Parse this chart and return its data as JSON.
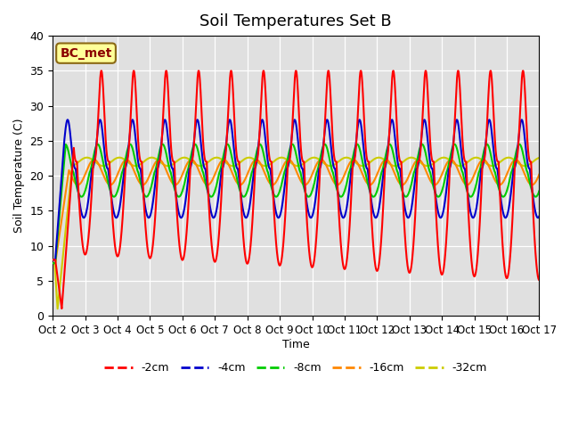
{
  "title": "Soil Temperatures Set B",
  "xlabel": "Time",
  "ylabel": "Soil Temperature (C)",
  "ylim": [
    0,
    40
  ],
  "annotation": "BC_met",
  "legend_labels": [
    "-2cm",
    "-4cm",
    "-8cm",
    "-16cm",
    "-32cm"
  ],
  "legend_colors": [
    "#ff0000",
    "#0000cc",
    "#00cc00",
    "#ff8800",
    "#cccc00"
  ],
  "bg_color": "#e0e0e0",
  "fig_color": "#ffffff",
  "xtick_labels": [
    "Oct 2",
    "Oct 3",
    "Oct 4",
    "Oct 5",
    "Oct 6",
    "Oct 7",
    "Oct 8",
    "Oct 9",
    "Oct 10",
    "Oct 11",
    "Oct 12",
    "Oct 13",
    "Oct 14",
    "Oct 15",
    "Oct 16",
    "Oct 17"
  ],
  "ytick_labels": [
    "0",
    "5",
    "10",
    "15",
    "20",
    "25",
    "30",
    "35",
    "40"
  ],
  "ytick_positions": [
    0,
    5,
    10,
    15,
    20,
    25,
    30,
    35,
    40
  ],
  "title_fontsize": 13
}
